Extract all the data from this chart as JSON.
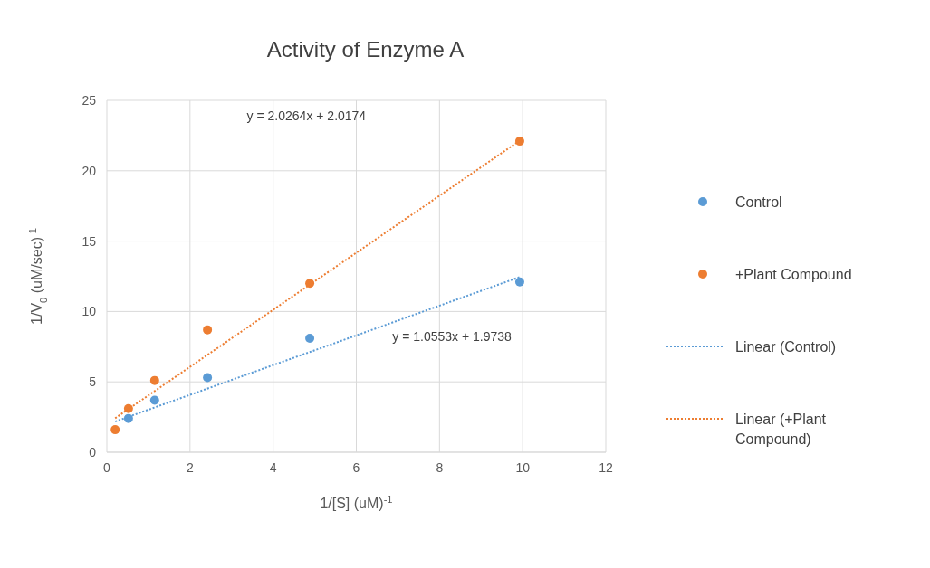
{
  "chart_data": {
    "type": "scatter",
    "title": "Activity of Enzyme A",
    "xlabel": "1/[S] (uM)$^{-1}$",
    "ylabel": "1/V$_{0}$ (uM/sec)$^{-1}$",
    "xlim": [
      0,
      12
    ],
    "xticks": [
      0,
      2,
      4,
      6,
      8,
      10,
      12
    ],
    "ylim": [
      0,
      25
    ],
    "yticks": [
      0,
      5,
      10,
      15,
      20,
      25
    ],
    "grid": true,
    "legend": "right",
    "series": [
      {
        "name": "Control",
        "color": "#5b9bd5",
        "marker": "circle",
        "x": [
          0.52,
          1.15,
          2.42,
          4.88,
          9.93
        ],
        "values": [
          2.4,
          3.7,
          5.3,
          8.1,
          12.1
        ]
      },
      {
        "name": "+Plant Compound",
        "color": "#ed7d31",
        "marker": "circle",
        "x": [
          0.2,
          0.52,
          1.15,
          2.42,
          4.88,
          9.93
        ],
        "values": [
          1.6,
          3.1,
          5.1,
          8.7,
          12.0,
          22.1
        ]
      },
      {
        "name": "Linear (Control)",
        "type": "line",
        "line_style": "dotted",
        "color": "#5b9bd5",
        "x": [
          0.2,
          9.93
        ],
        "values": [
          2.18,
          12.45
        ]
      },
      {
        "name": "Linear (+Plant Compound)",
        "type": "line",
        "line_style": "dotted",
        "color": "#ed7d31",
        "x": [
          0.2,
          9.93
        ],
        "values": [
          2.42,
          22.14
        ]
      }
    ],
    "annotations": [
      "y = 2.0264x + 2.0174",
      "y = 1.0553x + 1.9738"
    ]
  }
}
